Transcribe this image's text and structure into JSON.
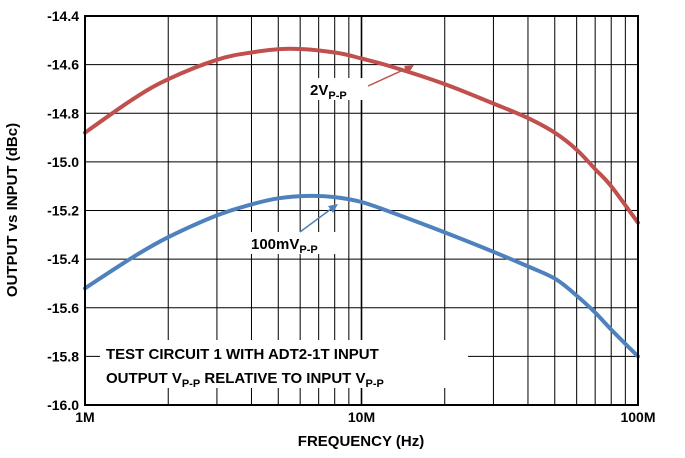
{
  "chart_data": {
    "type": "line",
    "xscale": "log",
    "xlim": [
      1000000,
      100000000
    ],
    "ylim": [
      -16.0,
      -14.4
    ],
    "xlabel": "FREQUENCY (Hz)",
    "ylabel": "OUTPUT vs INPUT (dBc)",
    "grid": true,
    "x_tick_labels": [
      "1M",
      "10M",
      "100M"
    ],
    "y_ticks": [
      -14.4,
      -14.6,
      -14.8,
      -15.0,
      -15.2,
      -15.4,
      -15.6,
      -15.8,
      -16.0
    ],
    "y_tick_labels": [
      "-14.4",
      "-14.6",
      "-14.8",
      "-15.0",
      "-15.2",
      "-15.4",
      "-15.6",
      "-15.8",
      "-16.0"
    ],
    "series": [
      {
        "name": "2V",
        "name_sub": "P-P",
        "color": "#c0504d",
        "x": [
          1000000,
          1500000,
          2000000,
          3000000,
          4000000,
          5500000,
          8000000,
          10000000,
          13000000,
          20000000,
          30000000,
          40000000,
          50000000,
          60000000,
          70000000,
          80000000,
          100000000
        ],
        "y": [
          -14.88,
          -14.74,
          -14.66,
          -14.58,
          -14.55,
          -14.535,
          -14.55,
          -14.575,
          -14.61,
          -14.68,
          -14.76,
          -14.82,
          -14.88,
          -14.95,
          -15.03,
          -15.1,
          -15.25
        ]
      },
      {
        "name": "100mV",
        "name_sub": "P-P",
        "color": "#4f81bd",
        "x": [
          1000000,
          1500000,
          2000000,
          3000000,
          4000000,
          5000000,
          6500000,
          8000000,
          10000000,
          13000000,
          20000000,
          30000000,
          40000000,
          50000000,
          60000000,
          70000000,
          80000000,
          100000000
        ],
        "y": [
          -15.52,
          -15.39,
          -15.31,
          -15.22,
          -15.175,
          -15.15,
          -15.14,
          -15.145,
          -15.165,
          -15.21,
          -15.29,
          -15.37,
          -15.43,
          -15.48,
          -15.55,
          -15.62,
          -15.69,
          -15.8
        ]
      }
    ],
    "annotations": {
      "label_2v": "2V",
      "label_2v_sub": "P-P",
      "label_100mv": "100mV",
      "label_100mv_sub": "P-P",
      "note_line1": "TEST CIRCUIT 1 WITH ADT2-1T INPUT",
      "note_line2_a": "OUTPUT V",
      "note_line2_sub1": "P-P",
      "note_line2_b": " RELATIVE TO INPUT V",
      "note_line2_sub2": "P-P"
    }
  }
}
